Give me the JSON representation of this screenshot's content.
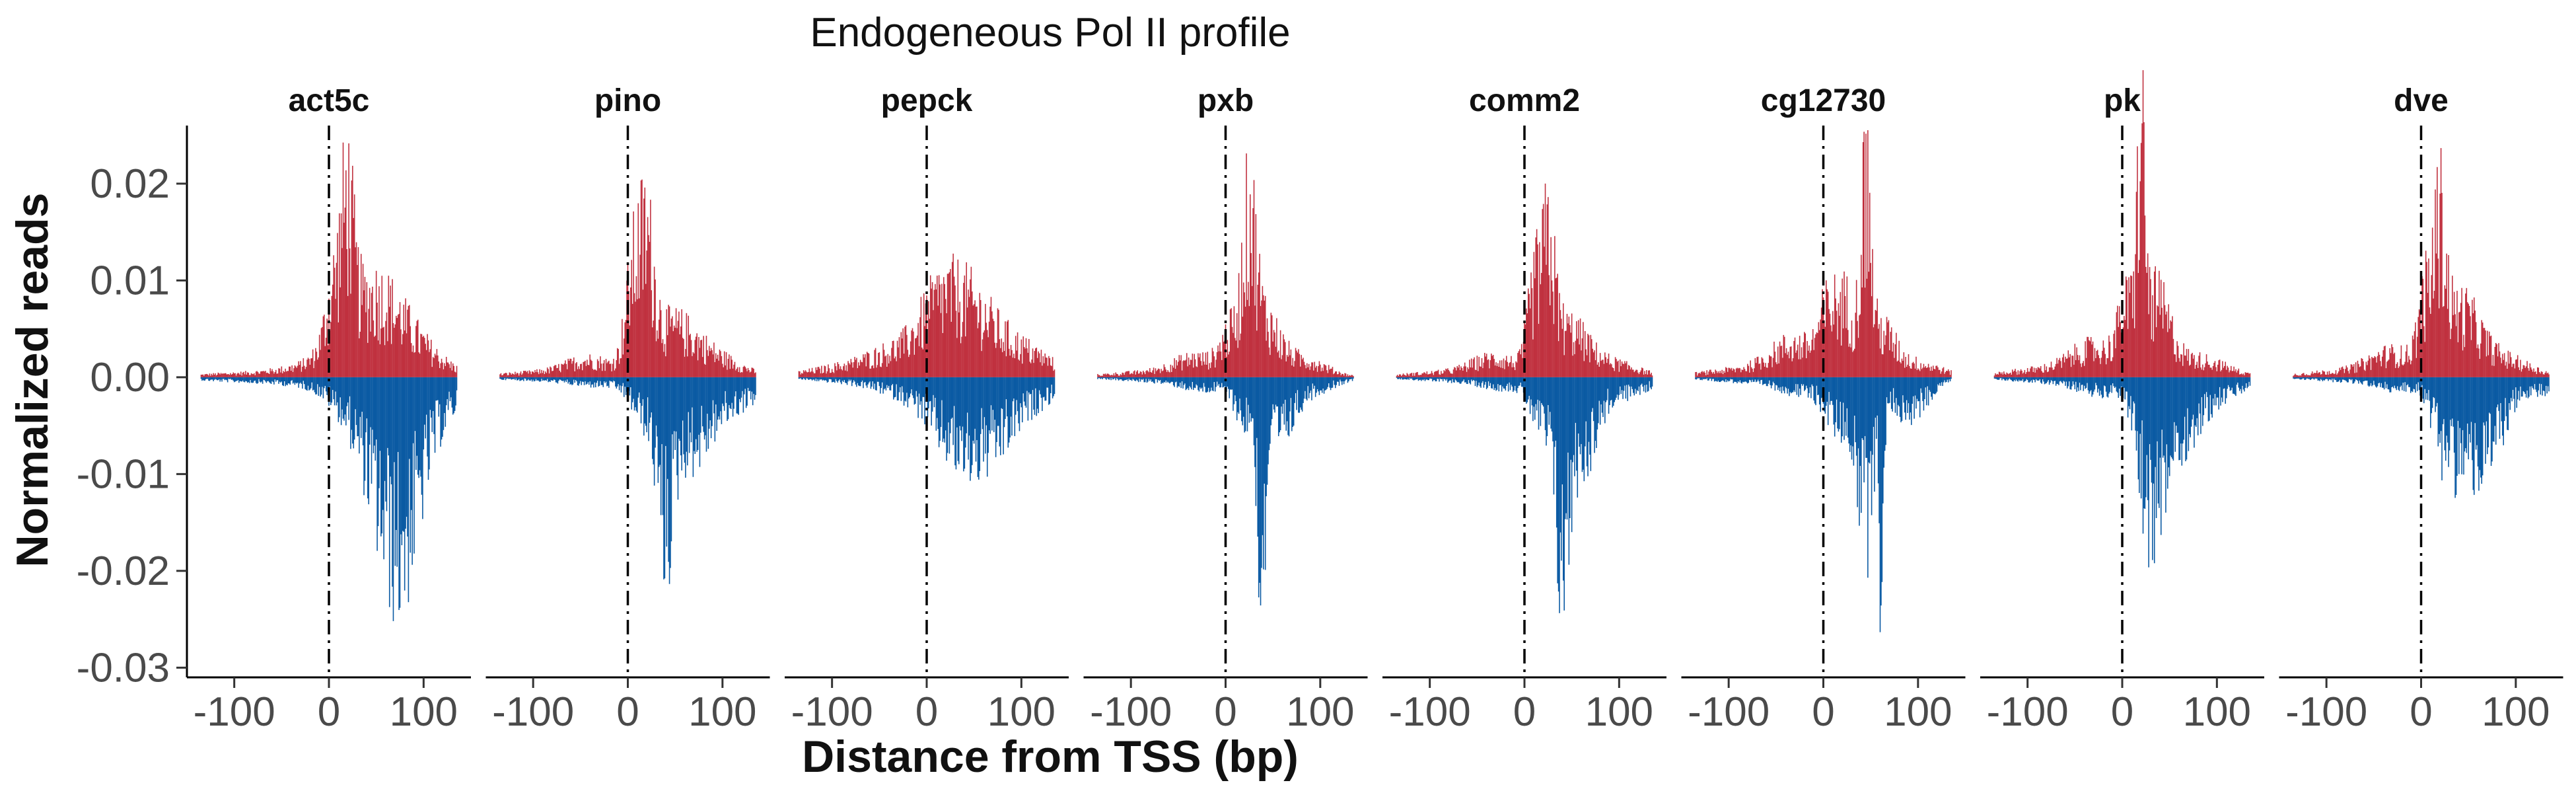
{
  "chart_data": {
    "type": "bar",
    "title": "Endogeneous Pol II profile",
    "xlabel": "Distance from TSS (bp)",
    "ylabel": "Normalized reads",
    "xlim": [
      -150,
      150
    ],
    "ylim": [
      -0.031,
      0.026
    ],
    "xticks": [
      -100,
      0,
      100
    ],
    "xtick_labels": [
      "-100",
      "0",
      "100"
    ],
    "yticks": [
      -0.03,
      -0.02,
      -0.01,
      0.0,
      0.01,
      0.02
    ],
    "ytick_labels": [
      "-0.03",
      "-0.02",
      "-0.01",
      "0.00",
      "0.01",
      "0.02"
    ],
    "reference_line": {
      "x": 0,
      "style": "dotdash",
      "color": "#000000"
    },
    "grid": false,
    "colors": {
      "positive": "#c0313f",
      "negative": "#0a5aa3"
    },
    "panels": [
      {
        "name": "act5c",
        "pos_peaks": [
          [
            -100,
            0.0004,
            40
          ],
          [
            -30,
            0.0008,
            30
          ],
          [
            8,
            0.0065,
            10
          ],
          [
            20,
            0.011,
            6
          ],
          [
            40,
            0.0075,
            30
          ],
          [
            80,
            0.0035,
            35
          ]
        ],
        "neg_peaks": [
          [
            -100,
            -0.0004,
            40
          ],
          [
            -30,
            -0.0006,
            30
          ],
          [
            30,
            -0.004,
            25
          ],
          [
            60,
            -0.0095,
            20
          ],
          [
            80,
            -0.011,
            18
          ],
          [
            110,
            -0.0045,
            25
          ]
        ]
      },
      {
        "name": "pino",
        "pos_peaks": [
          [
            -100,
            0.0005,
            40
          ],
          [
            -40,
            0.0018,
            25
          ],
          [
            5,
            0.009,
            8
          ],
          [
            20,
            0.012,
            8
          ],
          [
            45,
            0.005,
            25
          ],
          [
            90,
            0.002,
            30
          ]
        ],
        "neg_peaks": [
          [
            -100,
            -0.0003,
            40
          ],
          [
            -30,
            -0.0008,
            30
          ],
          [
            20,
            -0.004,
            15
          ],
          [
            40,
            -0.013,
            8
          ],
          [
            65,
            -0.007,
            20
          ],
          [
            110,
            -0.003,
            30
          ]
        ]
      },
      {
        "name": "pepck",
        "pos_peaks": [
          [
            -90,
            0.001,
            40
          ],
          [
            -30,
            0.0025,
            30
          ],
          [
            10,
            0.0045,
            20
          ],
          [
            40,
            0.0065,
            25
          ],
          [
            80,
            0.003,
            30
          ],
          [
            120,
            0.0012,
            25
          ]
        ],
        "neg_peaks": [
          [
            -80,
            -0.0005,
            40
          ],
          [
            -20,
            -0.0015,
            30
          ],
          [
            30,
            -0.006,
            25
          ],
          [
            70,
            -0.006,
            25
          ],
          [
            120,
            -0.002,
            25
          ]
        ]
      },
      {
        "name": "pxb",
        "pos_peaks": [
          [
            -90,
            0.0005,
            40
          ],
          [
            -30,
            0.002,
            25
          ],
          [
            5,
            0.004,
            10
          ],
          [
            25,
            0.015,
            7
          ],
          [
            40,
            0.006,
            15
          ],
          [
            80,
            0.002,
            25
          ]
        ],
        "neg_peaks": [
          [
            -80,
            -0.0004,
            40
          ],
          [
            -20,
            -0.0012,
            25
          ],
          [
            20,
            -0.004,
            10
          ],
          [
            38,
            -0.02,
            4
          ],
          [
            55,
            -0.006,
            15
          ],
          [
            90,
            -0.0015,
            25
          ]
        ]
      },
      {
        "name": "comm2",
        "pos_peaks": [
          [
            -90,
            0.0005,
            40
          ],
          [
            -30,
            0.002,
            25
          ],
          [
            10,
            0.008,
            7
          ],
          [
            25,
            0.012,
            7
          ],
          [
            45,
            0.005,
            20
          ],
          [
            90,
            0.0015,
            30
          ]
        ],
        "neg_peaks": [
          [
            -80,
            -0.0004,
            40
          ],
          [
            -20,
            -0.001,
            25
          ],
          [
            20,
            -0.005,
            12
          ],
          [
            40,
            -0.017,
            7
          ],
          [
            60,
            -0.008,
            15
          ],
          [
            100,
            -0.002,
            30
          ]
        ]
      },
      {
        "name": "cg12730",
        "pos_peaks": [
          [
            -90,
            0.0008,
            40
          ],
          [
            -30,
            0.0035,
            25
          ],
          [
            5,
            0.006,
            10
          ],
          [
            25,
            0.007,
            10
          ],
          [
            45,
            0.019,
            5
          ],
          [
            60,
            0.005,
            15
          ],
          [
            100,
            0.0015,
            25
          ]
        ],
        "neg_peaks": [
          [
            -80,
            -0.0005,
            40
          ],
          [
            -20,
            -0.0015,
            25
          ],
          [
            20,
            -0.005,
            15
          ],
          [
            45,
            -0.015,
            8
          ],
          [
            62,
            -0.028,
            2
          ],
          [
            90,
            -0.004,
            20
          ]
        ]
      },
      {
        "name": "pk",
        "pos_peaks": [
          [
            -90,
            0.0008,
            40
          ],
          [
            -30,
            0.003,
            25
          ],
          [
            5,
            0.006,
            10
          ],
          [
            20,
            0.021,
            4
          ],
          [
            35,
            0.008,
            15
          ],
          [
            80,
            0.002,
            30
          ]
        ],
        "neg_peaks": [
          [
            -80,
            -0.0005,
            40
          ],
          [
            -20,
            -0.0015,
            25
          ],
          [
            20,
            -0.006,
            10
          ],
          [
            35,
            -0.012,
            10
          ],
          [
            60,
            -0.006,
            20
          ],
          [
            100,
            -0.002,
            30
          ]
        ]
      },
      {
        "name": "dve",
        "pos_peaks": [
          [
            -90,
            0.0006,
            40
          ],
          [
            -30,
            0.0025,
            25
          ],
          [
            5,
            0.007,
            8
          ],
          [
            20,
            0.013,
            6
          ],
          [
            40,
            0.007,
            20
          ],
          [
            85,
            0.002,
            30
          ]
        ],
        "neg_peaks": [
          [
            -80,
            -0.0004,
            40
          ],
          [
            -20,
            -0.0012,
            25
          ],
          [
            20,
            -0.004,
            10
          ],
          [
            40,
            -0.008,
            15
          ],
          [
            70,
            -0.0075,
            15
          ],
          [
            110,
            -0.002,
            30
          ]
        ]
      }
    ]
  }
}
